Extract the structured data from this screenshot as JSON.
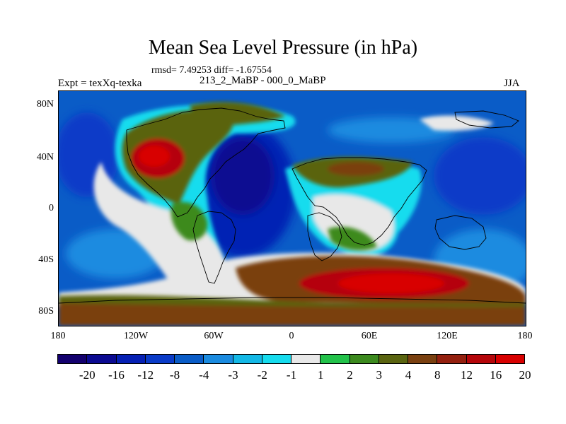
{
  "header": {
    "title": "Mean Sea Level Pressure (in hPa)",
    "stats": "rmsd= 7.49253 diff= -1.67554",
    "experiment": "Expt = texXq-texka",
    "subtitle": "213_2_MaBP - 000_0_MaBP",
    "season": "JJA"
  },
  "map": {
    "projection": "cylindrical-equidistant",
    "variable": "mean sea level pressure difference",
    "lat_labels": [
      "80N",
      "40N",
      "0",
      "40S",
      "80S"
    ],
    "lon_labels": [
      "180",
      "120W",
      "60W",
      "0",
      "60E",
      "120E",
      "180"
    ],
    "features": [
      "coastline-outline",
      "filled-contours"
    ]
  },
  "colorbar": {
    "labels": [
      "-20",
      "-16",
      "-12",
      "-8",
      "-4",
      "-3",
      "-2",
      "-1",
      "1",
      "2",
      "3",
      "4",
      "8",
      "12",
      "16",
      "20"
    ],
    "colors": [
      "#13006e",
      "#0b0a91",
      "#0620b4",
      "#0a3bc8",
      "#0a5cc7",
      "#1a8be0",
      "#13b8e6",
      "#16dcee",
      "#e8e8e8",
      "#22c24a",
      "#3c8a1e",
      "#5a6410",
      "#7a4010",
      "#94200f",
      "#b5060a",
      "#d80000"
    ]
  }
}
